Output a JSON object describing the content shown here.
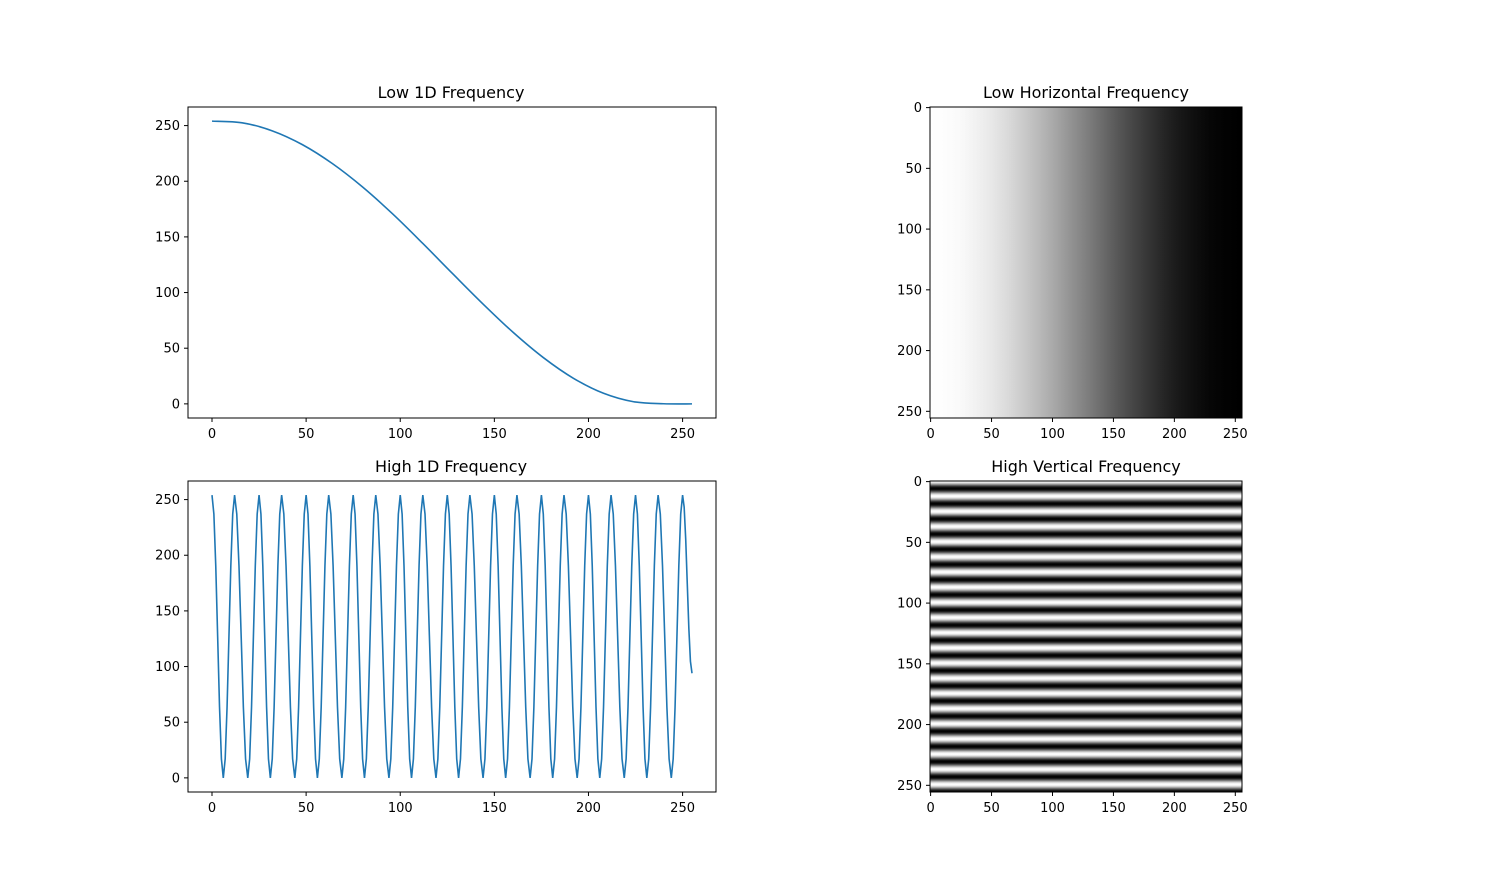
{
  "chart_data": [
    {
      "type": "line",
      "title": "Low 1D Frequency",
      "xlabel": "",
      "ylabel": "",
      "xlim": [
        -12.75,
        267.75
      ],
      "ylim": [
        -12.7,
        266.7
      ],
      "xticks": [
        0,
        50,
        100,
        150,
        200,
        250
      ],
      "yticks": [
        0,
        50,
        100,
        150,
        200,
        250
      ],
      "xtick_labels": [
        "0",
        "50",
        "100",
        "150",
        "200",
        "250"
      ],
      "ytick_labels": [
        "0",
        "50",
        "100",
        "150",
        "200",
        "250"
      ],
      "grid": false,
      "series": [
        {
          "color": "#1f77b4",
          "x": [
            0,
            16,
            32,
            48,
            64,
            80,
            96,
            112,
            128,
            144,
            160,
            176,
            192,
            208,
            224,
            240,
            255
          ],
          "y": [
            254,
            252.5,
            245.3,
            232.9,
            215.8,
            194.8,
            170.6,
            144.1,
            116.7,
            89.7,
            64.2,
            41.6,
            23.0,
            9.5,
            1.9,
            0.1,
            0
          ]
        }
      ]
    },
    {
      "type": "heatmap",
      "title": "Low Horizontal Frequency",
      "colormap": "gray",
      "size": [
        256,
        256
      ],
      "xticks": [
        0,
        50,
        100,
        150,
        200,
        250
      ],
      "yticks": [
        0,
        50,
        100,
        150,
        200,
        250
      ],
      "xtick_labels": [
        "0",
        "50",
        "100",
        "150",
        "200",
        "250"
      ],
      "ytick_labels": [
        "0",
        "50",
        "100",
        "150",
        "200",
        "250"
      ],
      "direction": "horizontal",
      "cycles": 0.5
    },
    {
      "type": "line",
      "title": "High 1D Frequency",
      "xlabel": "",
      "ylabel": "",
      "xlim": [
        -12.75,
        267.75
      ],
      "ylim": [
        -12.7,
        266.7
      ],
      "xticks": [
        0,
        50,
        100,
        150,
        200,
        250
      ],
      "yticks": [
        0,
        50,
        100,
        150,
        200,
        250
      ],
      "xtick_labels": [
        "0",
        "50",
        "100",
        "150",
        "200",
        "250"
      ],
      "ytick_labels": [
        "0",
        "50",
        "100",
        "150",
        "200",
        "250"
      ],
      "grid": false,
      "series": [
        {
          "color": "#1f77b4",
          "x": [
            0,
            6,
            12,
            19,
            25,
            31,
            37,
            44,
            50,
            56,
            62,
            69,
            75,
            81,
            87,
            94,
            100,
            106,
            112,
            119,
            125,
            131,
            137,
            144,
            150,
            156,
            162,
            169,
            175,
            181,
            187,
            194,
            200,
            206,
            212,
            219,
            225,
            231,
            237,
            244,
            250,
            255
          ],
          "y": [
            254,
            0,
            254,
            0,
            254,
            0,
            254,
            0,
            254,
            0,
            254,
            0,
            254,
            0,
            254,
            0,
            254,
            0,
            254,
            0,
            254,
            0,
            254,
            0,
            254,
            0,
            254,
            0,
            254,
            0,
            254,
            0,
            254,
            0,
            254,
            0,
            254,
            0,
            254,
            0,
            254,
            94
          ]
        }
      ]
    },
    {
      "type": "heatmap",
      "title": "High Vertical Frequency",
      "colormap": "gray",
      "size": [
        256,
        256
      ],
      "xticks": [
        0,
        50,
        100,
        150,
        200,
        250
      ],
      "yticks": [
        0,
        50,
        100,
        150,
        200,
        250
      ],
      "xtick_labels": [
        "0",
        "50",
        "100",
        "150",
        "200",
        "250"
      ],
      "ytick_labels": [
        "0",
        "50",
        "100",
        "150",
        "200",
        "250"
      ],
      "direction": "vertical",
      "cycles": 20.5
    }
  ]
}
